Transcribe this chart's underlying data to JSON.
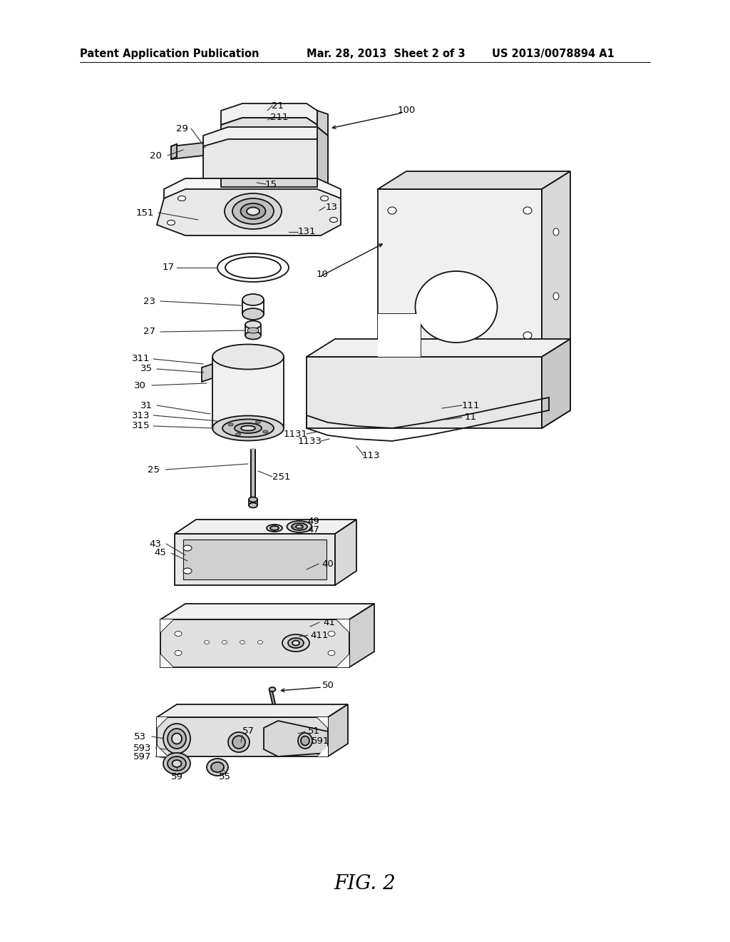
{
  "background_color": "#ffffff",
  "title": "FIG. 2",
  "header_left": "Patent Application Publication",
  "header_center": "Mar. 28, 2013  Sheet 2 of 3",
  "header_right": "US 2013/0078894 A1",
  "header_fontsize": 10.5,
  "title_fontsize": 20,
  "fig_width": 10.24,
  "fig_height": 13.2,
  "dpi": 100
}
